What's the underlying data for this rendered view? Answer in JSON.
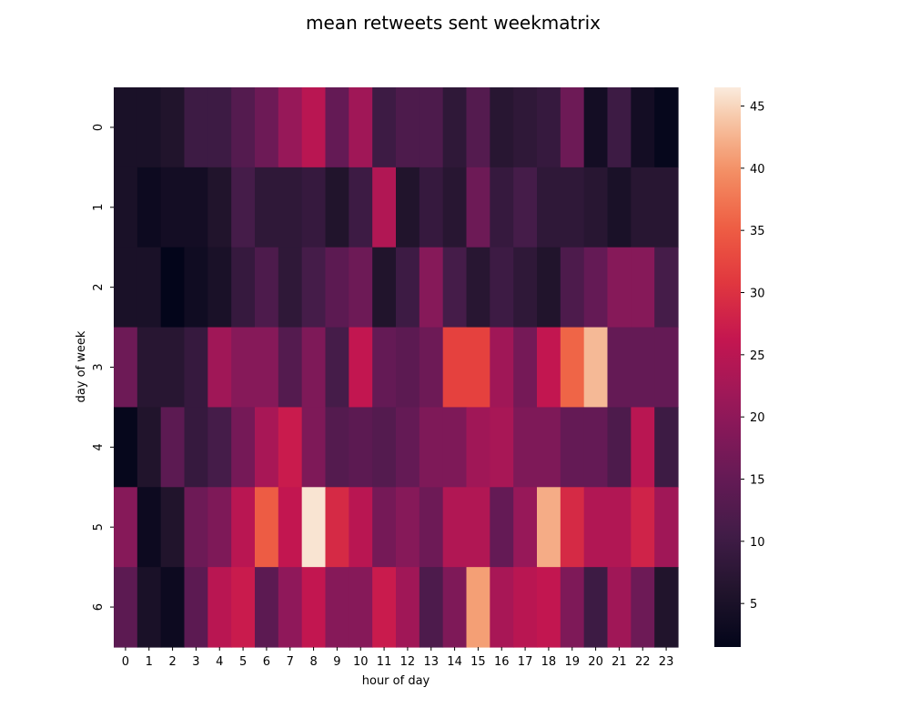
{
  "chart_data": {
    "type": "heatmap",
    "title": "mean retweets sent weekmatrix",
    "xlabel": "hour of day",
    "ylabel": "day of week",
    "x_categories": [
      "0",
      "1",
      "2",
      "3",
      "4",
      "5",
      "6",
      "7",
      "8",
      "9",
      "10",
      "11",
      "12",
      "13",
      "14",
      "15",
      "16",
      "17",
      "18",
      "19",
      "20",
      "21",
      "22",
      "23"
    ],
    "y_categories": [
      "0",
      "1",
      "2",
      "3",
      "4",
      "5",
      "6"
    ],
    "values": [
      [
        5,
        5,
        6,
        10,
        10,
        13,
        16,
        21,
        25,
        15,
        22,
        10,
        12,
        12,
        8,
        13,
        7,
        8,
        9,
        16,
        4,
        10,
        4,
        2
      ],
      [
        5,
        3,
        4,
        4,
        6,
        11,
        8,
        8,
        9,
        6,
        10,
        24,
        6,
        9,
        7,
        16,
        9,
        11,
        8,
        8,
        7,
        5,
        7,
        7
      ],
      [
        5,
        5,
        1.5,
        3.5,
        5,
        9,
        12,
        8,
        11,
        14,
        16,
        6,
        10,
        19,
        11,
        7,
        10,
        8,
        6,
        12,
        15,
        19,
        19,
        11
      ],
      [
        16,
        7,
        7,
        9,
        22,
        19,
        19,
        13,
        18,
        11,
        26,
        15,
        14,
        16,
        32,
        32,
        22,
        17,
        26,
        36,
        43,
        15,
        15,
        15
      ],
      [
        2,
        6,
        14,
        9,
        11,
        17,
        23,
        27,
        18,
        13,
        14,
        13,
        15,
        18,
        18,
        22,
        23,
        18,
        18,
        15,
        15,
        12,
        25,
        10
      ],
      [
        19,
        3,
        6,
        16,
        18,
        25,
        35,
        26,
        46,
        29,
        25,
        17,
        19,
        16,
        24,
        24,
        15,
        21,
        42,
        29,
        24,
        24,
        28,
        22
      ],
      [
        14,
        5,
        3,
        14,
        25,
        27,
        14,
        20,
        26,
        19,
        19,
        27,
        22,
        12,
        18,
        41,
        23,
        25,
        26,
        18,
        10,
        22,
        16,
        6
      ]
    ],
    "colorbar": {
      "vmin": 1.5,
      "vmax": 46.5,
      "ticks": [
        5,
        10,
        15,
        20,
        25,
        30,
        35,
        40,
        45
      ]
    },
    "colormap": "rocket"
  }
}
